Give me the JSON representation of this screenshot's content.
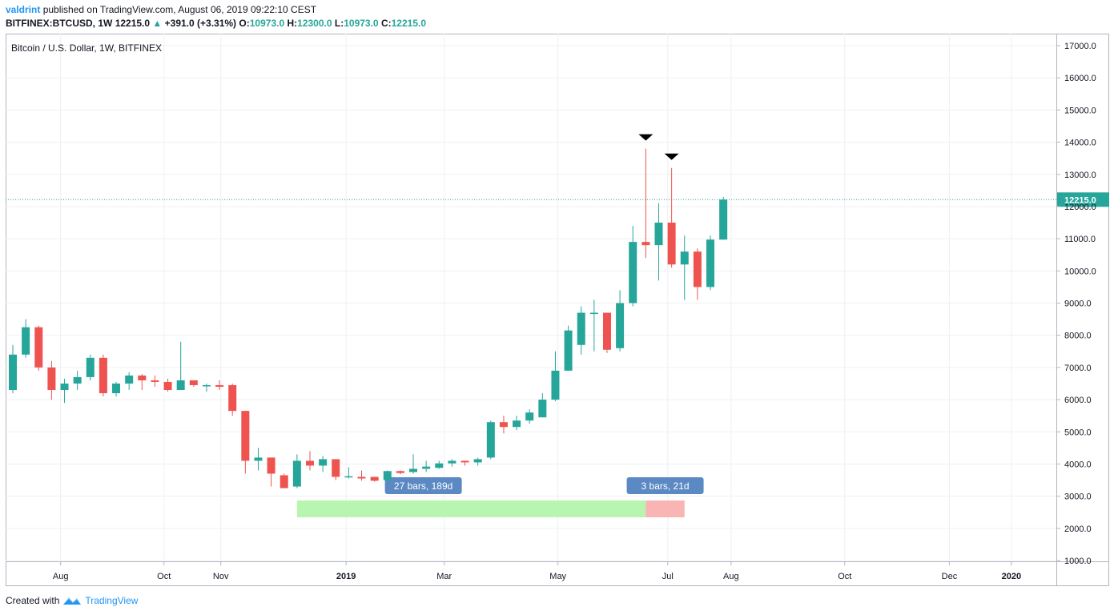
{
  "header": {
    "user": "valdrint",
    "published": "published on TradingView.com, August 06, 2019 09:22:10 CEST"
  },
  "ohlc": {
    "symbol": "BITFINEX:BTCUSD, 1W",
    "last": "12215.0",
    "change": "+391.0 (+3.31%)",
    "o_label": "O:",
    "o": "10973.0",
    "h_label": "H:",
    "h": "12300.0",
    "l_label": "L:",
    "l": "10973.0",
    "c_label": "C:",
    "c": "12215.0"
  },
  "footer": {
    "created_with": "Created with",
    "brand": "TradingView"
  },
  "colors": {
    "up": "#26a69a",
    "down": "#ef5350",
    "grid": "#eef0f3",
    "price_line": "#26a69a"
  },
  "chart_data": {
    "type": "candlestick",
    "title": "Bitcoin / U.S. Dollar, 1W, BITFINEX",
    "ylim": [
      1000,
      17000
    ],
    "y_ticks": [
      "17000.0",
      "16000.0",
      "15000.0",
      "14000.0",
      "13000.0",
      "12000.0",
      "11000.0",
      "10000.0",
      "9000.0",
      "8000.0",
      "7000.0",
      "6000.0",
      "5000.0",
      "4000.0",
      "3000.0",
      "2000.0",
      "1000.0"
    ],
    "x_ticks": [
      {
        "label": "Aug",
        "week": 3.7
      },
      {
        "label": "Oct",
        "week": 11.7
      },
      {
        "label": "Nov",
        "week": 16.1
      },
      {
        "label": "2019",
        "week": 25.8,
        "bold": true
      },
      {
        "label": "Mar",
        "week": 33.4
      },
      {
        "label": "May",
        "week": 42.2
      },
      {
        "label": "Jul",
        "week": 50.7
      },
      {
        "label": "Aug",
        "week": 55.6
      },
      {
        "label": "Oct",
        "week": 64.4
      },
      {
        "label": "Dec",
        "week": 72.5
      },
      {
        "label": "2020",
        "week": 77.3,
        "bold": true
      }
    ],
    "candles": [
      {
        "o": 6300,
        "h": 7700,
        "l": 6200,
        "c": 7400
      },
      {
        "o": 7400,
        "h": 8500,
        "l": 7300,
        "c": 8250
      },
      {
        "o": 8250,
        "h": 8300,
        "l": 6900,
        "c": 7000
      },
      {
        "o": 7000,
        "h": 7200,
        "l": 6000,
        "c": 6300
      },
      {
        "o": 6300,
        "h": 6650,
        "l": 5900,
        "c": 6500
      },
      {
        "o": 6500,
        "h": 6900,
        "l": 6300,
        "c": 6700
      },
      {
        "o": 6700,
        "h": 7400,
        "l": 6600,
        "c": 7300
      },
      {
        "o": 7300,
        "h": 7400,
        "l": 6100,
        "c": 6200
      },
      {
        "o": 6200,
        "h": 6550,
        "l": 6100,
        "c": 6500
      },
      {
        "o": 6500,
        "h": 6850,
        "l": 6300,
        "c": 6750
      },
      {
        "o": 6750,
        "h": 6800,
        "l": 6300,
        "c": 6600
      },
      {
        "o": 6600,
        "h": 6750,
        "l": 6400,
        "c": 6550
      },
      {
        "o": 6550,
        "h": 6650,
        "l": 6250,
        "c": 6300
      },
      {
        "o": 6300,
        "h": 7800,
        "l": 6300,
        "c": 6600
      },
      {
        "o": 6600,
        "h": 6600,
        "l": 6400,
        "c": 6450
      },
      {
        "o": 6450,
        "h": 6500,
        "l": 6250,
        "c": 6450
      },
      {
        "o": 6450,
        "h": 6600,
        "l": 6300,
        "c": 6400
      },
      {
        "o": 6450,
        "h": 6500,
        "l": 5500,
        "c": 5650
      },
      {
        "o": 5650,
        "h": 5650,
        "l": 3700,
        "c": 4100
      },
      {
        "o": 4100,
        "h": 4500,
        "l": 3800,
        "c": 4200
      },
      {
        "o": 4200,
        "h": 4200,
        "l": 3300,
        "c": 3700
      },
      {
        "o": 3650,
        "h": 3700,
        "l": 3250,
        "c": 3250
      },
      {
        "o": 3300,
        "h": 4300,
        "l": 3250,
        "c": 4100
      },
      {
        "o": 4100,
        "h": 4400,
        "l": 3800,
        "c": 3950
      },
      {
        "o": 3950,
        "h": 4250,
        "l": 3750,
        "c": 4150
      },
      {
        "o": 4150,
        "h": 4150,
        "l": 3500,
        "c": 3600
      },
      {
        "o": 3600,
        "h": 3900,
        "l": 3550,
        "c": 3620
      },
      {
        "o": 3600,
        "h": 3800,
        "l": 3480,
        "c": 3550
      },
      {
        "o": 3600,
        "h": 3600,
        "l": 3450,
        "c": 3480
      },
      {
        "o": 3500,
        "h": 3800,
        "l": 3450,
        "c": 3780
      },
      {
        "o": 3780,
        "h": 3800,
        "l": 3680,
        "c": 3720
      },
      {
        "o": 3750,
        "h": 4300,
        "l": 3700,
        "c": 3850
      },
      {
        "o": 3850,
        "h": 4100,
        "l": 3750,
        "c": 3920
      },
      {
        "o": 3880,
        "h": 4100,
        "l": 3850,
        "c": 4020
      },
      {
        "o": 4020,
        "h": 4150,
        "l": 3920,
        "c": 4100
      },
      {
        "o": 4100,
        "h": 4100,
        "l": 3950,
        "c": 4050
      },
      {
        "o": 4050,
        "h": 4200,
        "l": 3950,
        "c": 4150
      },
      {
        "o": 4200,
        "h": 5350,
        "l": 4150,
        "c": 5300
      },
      {
        "o": 5300,
        "h": 5500,
        "l": 4950,
        "c": 5150
      },
      {
        "o": 5150,
        "h": 5500,
        "l": 5050,
        "c": 5350
      },
      {
        "o": 5350,
        "h": 5700,
        "l": 5250,
        "c": 5600
      },
      {
        "o": 5450,
        "h": 6200,
        "l": 5450,
        "c": 6000
      },
      {
        "o": 6000,
        "h": 7500,
        "l": 5950,
        "c": 6900
      },
      {
        "o": 6900,
        "h": 8300,
        "l": 6900,
        "c": 8150
      },
      {
        "o": 7700,
        "h": 8900,
        "l": 7400,
        "c": 8700
      },
      {
        "o": 8700,
        "h": 9100,
        "l": 7500,
        "c": 8700
      },
      {
        "o": 8700,
        "h": 8700,
        "l": 7450,
        "c": 7550
      },
      {
        "o": 7600,
        "h": 9400,
        "l": 7500,
        "c": 9000
      },
      {
        "o": 9000,
        "h": 11400,
        "l": 8900,
        "c": 10900
      },
      {
        "o": 10900,
        "h": 13800,
        "l": 10400,
        "c": 10800
      },
      {
        "o": 10800,
        "h": 12100,
        "l": 9700,
        "c": 11500
      },
      {
        "o": 11500,
        "h": 13200,
        "l": 10100,
        "c": 10200
      },
      {
        "o": 10200,
        "h": 11100,
        "l": 9100,
        "c": 10600
      },
      {
        "o": 10600,
        "h": 10700,
        "l": 9100,
        "c": 9500
      },
      {
        "o": 9500,
        "h": 11100,
        "l": 9400,
        "c": 10973
      },
      {
        "o": 10973,
        "h": 12300,
        "l": 10973,
        "c": 12215
      }
    ],
    "price_line": 12215,
    "price_label": "12215.0",
    "markers": [
      {
        "week": 49
      },
      {
        "week": 51
      }
    ],
    "ranges": [
      {
        "start_week": 22,
        "end_week": 49,
        "label": "27 bars, 189d",
        "color": "#b8f5b0"
      },
      {
        "start_week": 49,
        "end_week": 52,
        "label": "3 bars, 21d",
        "color": "#f9b4b4"
      }
    ]
  }
}
